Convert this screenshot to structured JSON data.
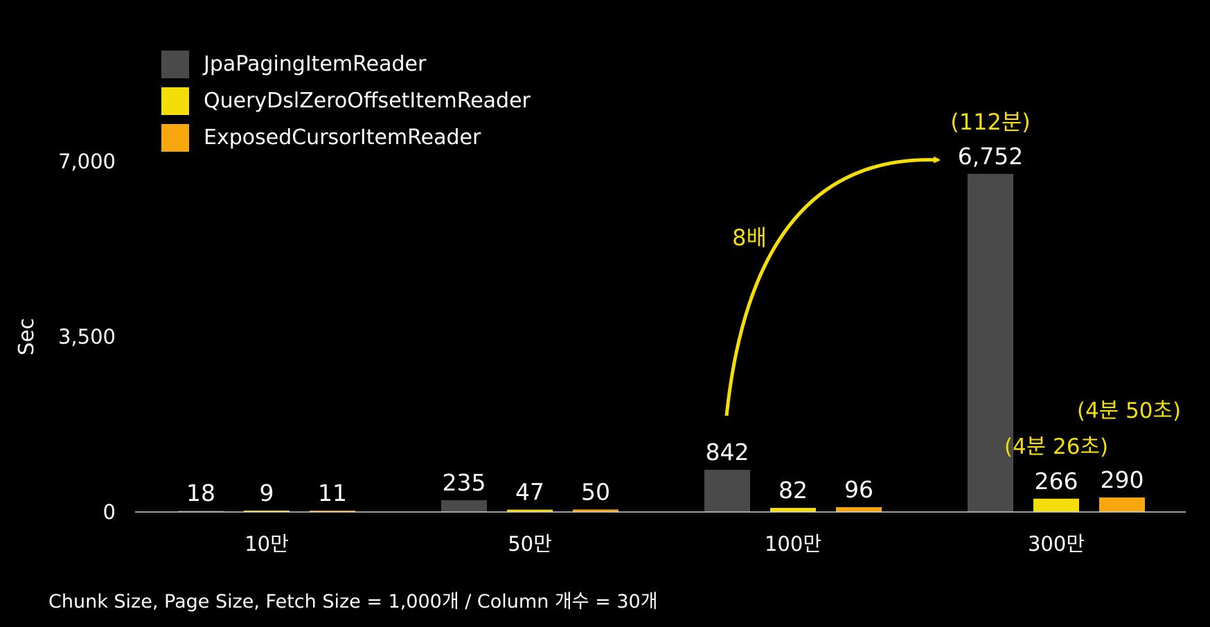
{
  "chart_data": {
    "type": "bar",
    "ylabel": "Sec",
    "ylim": [
      0,
      7000
    ],
    "yticks": [
      0,
      3500,
      7000
    ],
    "ytick_labels": [
      "0",
      "3,500",
      "7,000"
    ],
    "categories": [
      "10만",
      "50만",
      "100만",
      "300만"
    ],
    "series": [
      {
        "name": "JpaPagingItemReader",
        "color": "#4a4a4a",
        "values": [
          18,
          235,
          842,
          6752
        ],
        "value_labels": [
          "18",
          "235",
          "842",
          "6,752"
        ]
      },
      {
        "name": "QueryDslZeroOffsetItemReader",
        "color": "#f5dd0a",
        "values": [
          9,
          47,
          82,
          266
        ],
        "value_labels": [
          "9",
          "47",
          "82",
          "266"
        ]
      },
      {
        "name": "ExposedCursorItemReader",
        "color": "#f8a70e",
        "values": [
          11,
          50,
          96,
          290
        ],
        "value_labels": [
          "11",
          "50",
          "96",
          "290"
        ]
      }
    ],
    "legend_position": "top-left",
    "grid": false,
    "annotations": {
      "growth_label": "8배",
      "jpa_300_time": "(112분)",
      "querydsl_300_time": "(4분 26초)",
      "exposed_300_time": "(4분 50초)"
    },
    "annotation_color": "#f5dd0a"
  },
  "footnote": "Chunk Size, Page Size, Fetch Size = 1,000개 / Column 개수 = 30개"
}
